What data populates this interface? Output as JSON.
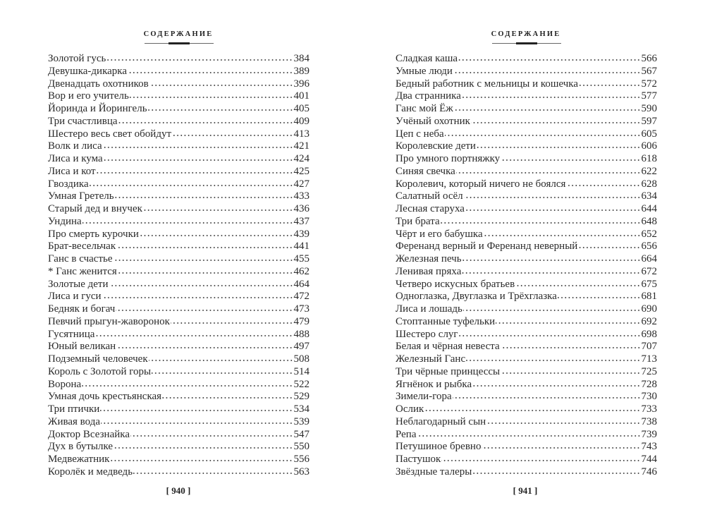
{
  "left_page": {
    "running_head": "СОДЕРЖАНИЕ",
    "folio": "[ 940 ]",
    "entries": [
      {
        "title": "Золотой гусь",
        "page": "384"
      },
      {
        "title": "Девушка-дикарка",
        "page": "389"
      },
      {
        "title": "Двенадцать охотников",
        "page": "396"
      },
      {
        "title": "Вор и его учитель",
        "page": "401"
      },
      {
        "title": "Йоринда и Йорингель",
        "page": "405"
      },
      {
        "title": "Три счастливца",
        "page": "409"
      },
      {
        "title": "Шестеро весь свет обойдут",
        "page": "413"
      },
      {
        "title": "Волк и лиса",
        "page": "421"
      },
      {
        "title": "Лиса и кума",
        "page": "424"
      },
      {
        "title": "Лиса и кот",
        "page": "425"
      },
      {
        "title": "Гвоздика",
        "page": "427"
      },
      {
        "title": "Умная Гретель",
        "page": "433"
      },
      {
        "title": "Старый дед и внучек",
        "page": "436"
      },
      {
        "title": "Ундина",
        "page": "437"
      },
      {
        "title": "Про смерть курочки",
        "page": "439"
      },
      {
        "title": "Брат-весельчак",
        "page": "441"
      },
      {
        "title": "Ганс в счастье",
        "page": "455"
      },
      {
        "title": "* Ганс женится",
        "page": "462"
      },
      {
        "title": "Золотые дети",
        "page": "464"
      },
      {
        "title": "Лиса и гуси",
        "page": "472"
      },
      {
        "title": "Бедняк и богач",
        "page": "473"
      },
      {
        "title": "Певчий прыгун-жаворонок",
        "page": "479"
      },
      {
        "title": "Гусятница",
        "page": "488"
      },
      {
        "title": "Юный великан",
        "page": "497"
      },
      {
        "title": "Подземный человечек",
        "page": "508"
      },
      {
        "title": "Король с Золотой горы",
        "page": "514"
      },
      {
        "title": "Ворона",
        "page": "522"
      },
      {
        "title": "Умная дочь крестьянская",
        "page": "529"
      },
      {
        "title": "Три птички",
        "page": "534"
      },
      {
        "title": "Живая вода",
        "page": "539"
      },
      {
        "title": "Доктор Всезнайка",
        "page": "547"
      },
      {
        "title": "Дух в бутылке",
        "page": "550"
      },
      {
        "title": "Медвежатник",
        "page": "556"
      },
      {
        "title": "Королёк и медведь",
        "page": "563"
      }
    ]
  },
  "right_page": {
    "running_head": "СОДЕРЖАНИЕ",
    "folio": "[ 941 ]",
    "entries": [
      {
        "title": "Сладкая каша",
        "page": "566"
      },
      {
        "title": "Умные люди",
        "page": "567"
      },
      {
        "title": "Бедный работник с мельницы и кошечка",
        "page": "572"
      },
      {
        "title": "Два странника",
        "page": "577"
      },
      {
        "title": "Ганс мой Ёж",
        "page": "590"
      },
      {
        "title": "Учёный охотник",
        "page": "597"
      },
      {
        "title": "Цеп с неба",
        "page": "605"
      },
      {
        "title": "Королевские дети",
        "page": "606"
      },
      {
        "title": "Про умного портняжку",
        "page": "618"
      },
      {
        "title": "Синяя свечка",
        "page": "622"
      },
      {
        "title": "Королевич, который ничего не боялся",
        "page": "628"
      },
      {
        "title": "Салатный осёл",
        "page": "634"
      },
      {
        "title": "Лесная старуха",
        "page": "644"
      },
      {
        "title": "Три брата",
        "page": "648"
      },
      {
        "title": "Чёрт и его бабушка",
        "page": "652"
      },
      {
        "title": "Ференанд верный и Ференанд неверный",
        "page": "656"
      },
      {
        "title": "Железная печь",
        "page": "664"
      },
      {
        "title": "Ленивая пряха",
        "page": "672"
      },
      {
        "title": "Четверо искусных братьев",
        "page": "675"
      },
      {
        "title": "Одноглазка, Двуглазка и Трёхглазка",
        "page": "681"
      },
      {
        "title": "Лиса и лошадь",
        "page": "690"
      },
      {
        "title": "Стоптанные туфельки",
        "page": "692"
      },
      {
        "title": "Шестеро слуг",
        "page": "698"
      },
      {
        "title": "Белая и чёрная невеста",
        "page": "707"
      },
      {
        "title": "Железный Ганс",
        "page": "713"
      },
      {
        "title": "Три чёрные принцессы",
        "page": "725"
      },
      {
        "title": "Ягнёнок и рыбка",
        "page": "728"
      },
      {
        "title": "Зимели-гора",
        "page": "730"
      },
      {
        "title": "Ослик",
        "page": "733"
      },
      {
        "title": "Неблагодарный сын",
        "page": "738"
      },
      {
        "title": "Репа",
        "page": "739"
      },
      {
        "title": "Петушиное бревно",
        "page": "743"
      },
      {
        "title": "Пастушок",
        "page": "744"
      },
      {
        "title": "Звёздные талеры",
        "page": "746"
      }
    ]
  }
}
